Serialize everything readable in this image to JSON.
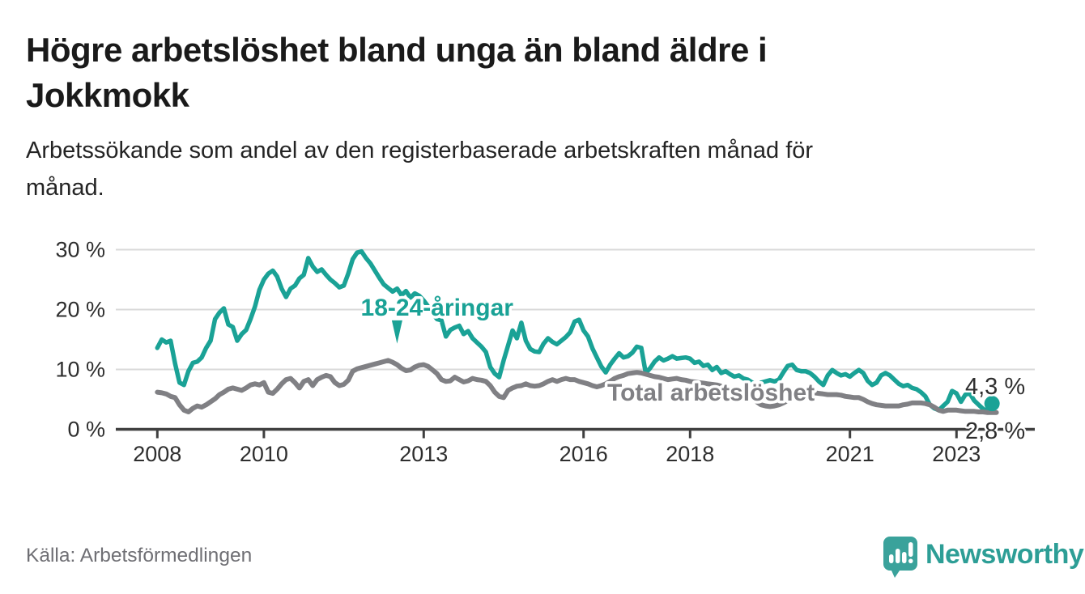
{
  "header": {
    "title_lines": [
      "Högre arbetslöshet bland unga än bland äldre i",
      "Jokkmokk"
    ],
    "subtitle_lines": [
      "Arbetssökande som andel av den registerbaserade arbetskraften månad för",
      "månad."
    ]
  },
  "footer": {
    "source": "Källa: Arbetsförmedlingen",
    "brand_name": "Newsworthy"
  },
  "colors": {
    "accent_teal": "#1aa296",
    "line_gray": "#808084",
    "logo_teal": "#3aa29b",
    "logo_text_teal": "#2d9e96"
  },
  "chart_data": {
    "type": "line",
    "unit": "percent",
    "frequency": "monthly",
    "period_start": "2008-01",
    "grid": true,
    "ylim": [
      0,
      32
    ],
    "y_ticks": [
      {
        "value": 0,
        "label": "0 %"
      },
      {
        "value": 10,
        "label": "10 %"
      },
      {
        "value": 20,
        "label": "20 %"
      },
      {
        "value": 30,
        "label": "30 %"
      }
    ],
    "x_ticks": [
      {
        "month": 0,
        "label": "2008"
      },
      {
        "month": 24,
        "label": "2010"
      },
      {
        "month": 60,
        "label": "2013"
      },
      {
        "month": 96,
        "label": "2016"
      },
      {
        "month": 120,
        "label": "2018"
      },
      {
        "month": 156,
        "label": "2021"
      },
      {
        "month": 180,
        "label": "2023"
      }
    ],
    "style": {
      "grid_color": "#d9d9d9",
      "axis_color": "#3f3f3f",
      "text_color": "#2e2e2e"
    },
    "annotations": [
      {
        "text": "18-24-åringar",
        "month": 63,
        "value": 19,
        "color": "#1aa296",
        "arrow": {
          "month": 54,
          "from_value": 18.2,
          "to_value": 14.3
        }
      },
      {
        "text": "Total arbetslöshet",
        "month": 124.7,
        "value": 4.8,
        "color": "#808084"
      }
    ],
    "series": [
      {
        "name": "18-24-åringar",
        "color": "#1aa296",
        "end_label": "4,3 %",
        "end_value": 4.3,
        "values": [
          13.6,
          15.0,
          14.5,
          14.8,
          11.0,
          7.8,
          7.4,
          9.7,
          11.1,
          11.3,
          12.0,
          13.6,
          14.8,
          18.4,
          19.5,
          20.2,
          17.5,
          17.1,
          14.8,
          15.9,
          16.6,
          18.4,
          20.5,
          23.3,
          25.0,
          26.0,
          26.5,
          25.5,
          23.5,
          22.1,
          23.5,
          24.0,
          25.2,
          25.8,
          28.6,
          27.2,
          26.3,
          26.7,
          25.8,
          25.0,
          24.4,
          23.7,
          24.0,
          26.0,
          28.4,
          29.5,
          29.7,
          28.6,
          27.7,
          26.5,
          25.3,
          24.2,
          23.6,
          23.0,
          23.5,
          22.4,
          23.1,
          22.0,
          22.7,
          22.3,
          21.5,
          20.5,
          19.3,
          18.4,
          18.2,
          15.5,
          16.6,
          17.0,
          17.3,
          15.9,
          16.4,
          15.2,
          14.5,
          13.8,
          12.9,
          10.4,
          9.3,
          8.7,
          11.5,
          14.0,
          16.5,
          15.2,
          17.8,
          14.8,
          13.4,
          13.0,
          12.9,
          14.3,
          15.2,
          14.6,
          14.2,
          14.8,
          15.4,
          16.2,
          18.0,
          18.3,
          16.5,
          15.5,
          13.5,
          12.0,
          10.5,
          9.5,
          10.8,
          11.8,
          12.7,
          12.0,
          12.2,
          12.8,
          13.8,
          13.6,
          9.4,
          10.2,
          11.3,
          12.0,
          11.5,
          11.8,
          12.2,
          11.8,
          11.9,
          12.0,
          11.8,
          11.1,
          11.3,
          10.6,
          10.8,
          9.9,
          10.4,
          9.4,
          9.7,
          9.2,
          8.8,
          9.0,
          8.5,
          8.3,
          7.8,
          7.3,
          7.8,
          8.0,
          8.2,
          8.0,
          8.3,
          9.5,
          10.6,
          10.8,
          9.9,
          9.7,
          9.7,
          9.4,
          8.8,
          8.0,
          7.4,
          9.0,
          9.9,
          9.4,
          9.0,
          9.2,
          8.8,
          9.4,
          9.9,
          9.4,
          8.1,
          7.4,
          7.8,
          9.0,
          9.4,
          9.0,
          8.3,
          7.6,
          7.2,
          7.4,
          6.9,
          6.7,
          6.2,
          5.5,
          4.1,
          3.5,
          3.2,
          3.9,
          4.6,
          6.4,
          6.0,
          4.6,
          5.8,
          6.0,
          4.8,
          4.1,
          3.4,
          3.0,
          4.3
        ]
      },
      {
        "name": "Total arbetslöshet",
        "color": "#808084",
        "end_label": "2,8 %",
        "end_value": 2.8,
        "values": [
          6.2,
          6.1,
          5.9,
          5.5,
          5.3,
          4.1,
          3.2,
          2.9,
          3.5,
          3.9,
          3.7,
          4.1,
          4.6,
          5.1,
          5.8,
          6.2,
          6.7,
          6.9,
          6.7,
          6.5,
          6.9,
          7.4,
          7.6,
          7.4,
          7.8,
          6.2,
          6.0,
          6.7,
          7.6,
          8.3,
          8.5,
          7.8,
          6.9,
          8.0,
          8.3,
          7.3,
          8.3,
          8.7,
          9.0,
          8.8,
          7.8,
          7.3,
          7.5,
          8.2,
          9.7,
          10.1,
          10.3,
          10.5,
          10.7,
          10.9,
          11.1,
          11.3,
          11.5,
          11.2,
          10.8,
          10.2,
          9.8,
          9.9,
          10.4,
          10.7,
          10.8,
          10.5,
          9.9,
          9.3,
          8.3,
          8.0,
          8.1,
          8.7,
          8.3,
          7.9,
          8.1,
          8.5,
          8.3,
          8.2,
          8.0,
          7.3,
          6.2,
          5.5,
          5.3,
          6.5,
          6.9,
          7.2,
          7.3,
          7.6,
          7.3,
          7.2,
          7.3,
          7.6,
          8.0,
          8.3,
          8.0,
          8.3,
          8.5,
          8.3,
          8.3,
          8.0,
          7.8,
          7.6,
          7.3,
          7.1,
          7.3,
          7.6,
          8.0,
          8.5,
          8.8,
          9.0,
          9.3,
          9.4,
          9.5,
          9.4,
          9.2,
          9.0,
          8.8,
          8.7,
          8.5,
          8.3,
          8.4,
          8.5,
          8.3,
          8.2,
          8.0,
          7.9,
          7.8,
          7.7,
          7.6,
          7.5,
          7.4,
          7.2,
          7.0,
          6.8,
          6.6,
          6.4,
          6.2,
          5.8,
          5.2,
          4.6,
          4.1,
          3.9,
          3.8,
          3.9,
          4.1,
          4.4,
          4.8,
          5.2,
          5.5,
          5.6,
          5.8,
          6.0,
          6.1,
          6.0,
          5.9,
          5.8,
          5.8,
          5.8,
          5.7,
          5.5,
          5.4,
          5.3,
          5.3,
          5.0,
          4.6,
          4.3,
          4.1,
          4.0,
          3.9,
          3.9,
          3.9,
          3.9,
          4.1,
          4.2,
          4.4,
          4.4,
          4.4,
          4.3,
          4.1,
          3.7,
          3.2,
          3.0,
          3.2,
          3.2,
          3.2,
          3.1,
          3.0,
          3.0,
          3.0,
          2.9,
          2.9,
          2.8,
          2.8,
          2.8
        ]
      }
    ]
  }
}
